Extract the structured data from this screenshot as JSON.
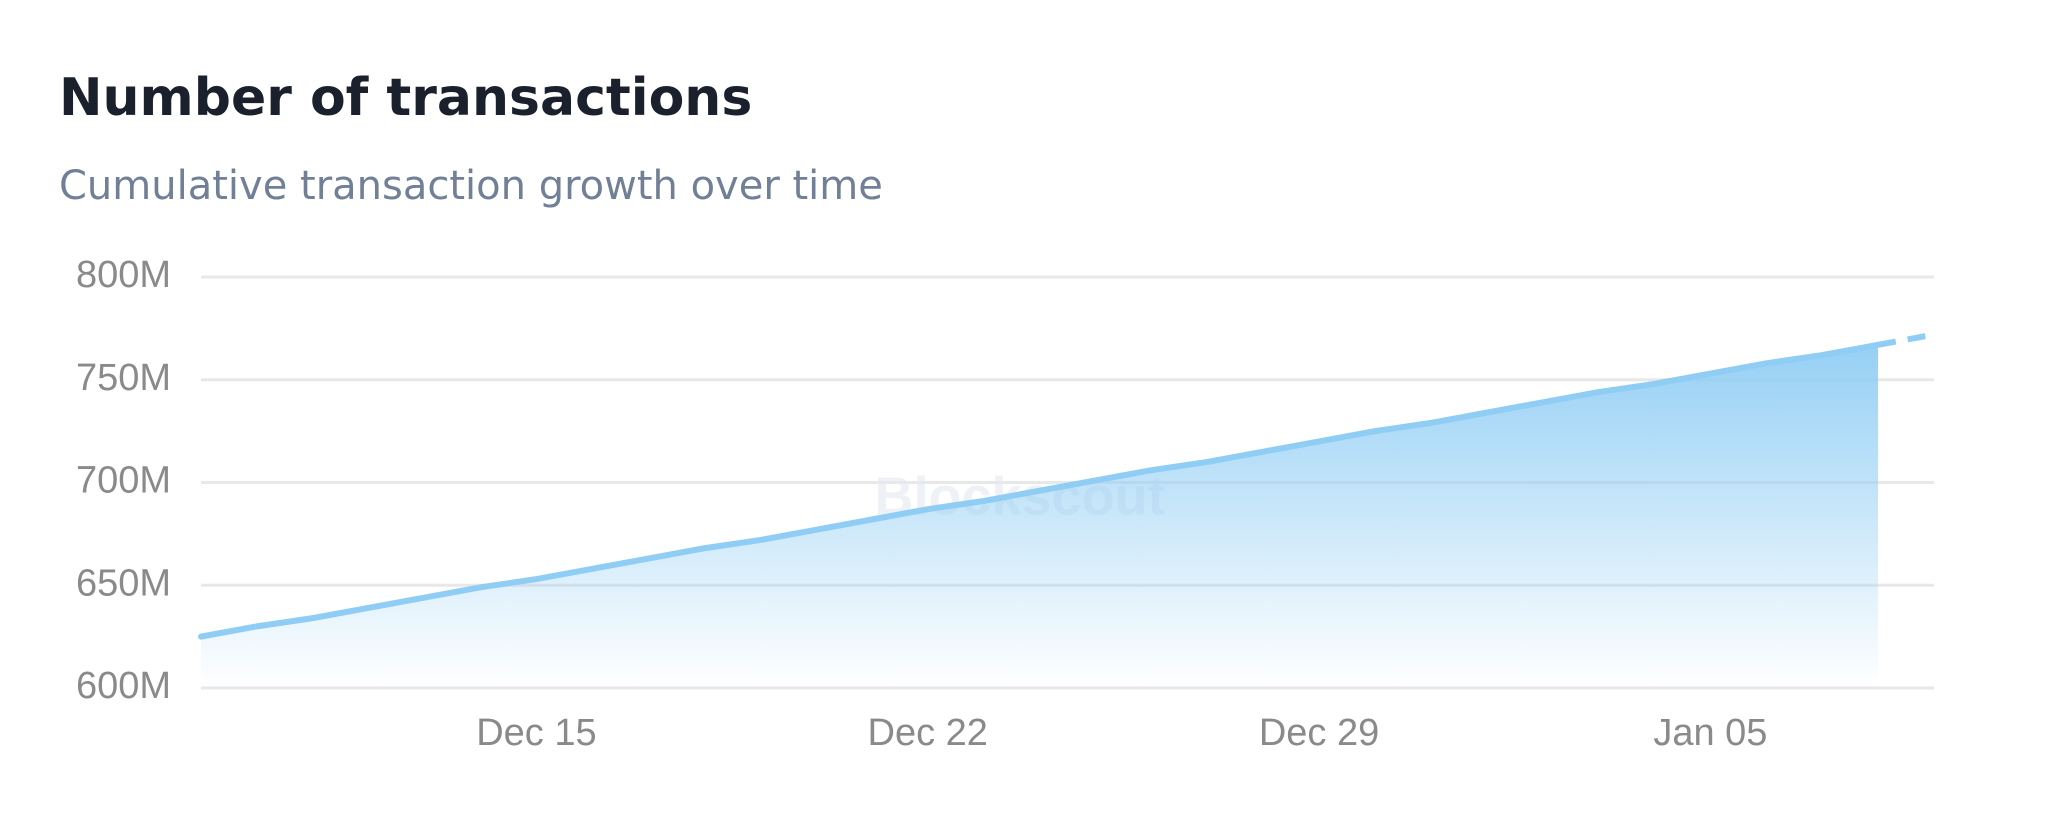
{
  "chart_data": {
    "type": "area",
    "title": "Number of transactions",
    "subtitle": "Cumulative transaction growth over time",
    "watermark": "Blockscout",
    "x": [
      "Dec 09",
      "Dec 10",
      "Dec 11",
      "Dec 12",
      "Dec 13",
      "Dec 14",
      "Dec 15",
      "Dec 16",
      "Dec 17",
      "Dec 18",
      "Dec 19",
      "Dec 20",
      "Dec 21",
      "Dec 22",
      "Dec 23",
      "Dec 24",
      "Dec 25",
      "Dec 26",
      "Dec 27",
      "Dec 28",
      "Dec 29",
      "Dec 30",
      "Dec 31",
      "Jan 01",
      "Jan 02",
      "Jan 03",
      "Jan 04",
      "Jan 05",
      "Jan 06",
      "Jan 07",
      "Jan 08",
      "Jan 09"
    ],
    "values": [
      625000000,
      630000000,
      634000000,
      639000000,
      644000000,
      649000000,
      653000000,
      658000000,
      663000000,
      668000000,
      672000000,
      677000000,
      682000000,
      687000000,
      691000000,
      696000000,
      701000000,
      706000000,
      710000000,
      715000000,
      720000000,
      725000000,
      729000000,
      734000000,
      739000000,
      744000000,
      748000000,
      753000000,
      758000000,
      762000000,
      767000000,
      772000000
    ],
    "color": "#90cdf4",
    "last_segment_dashed": true,
    "ylim": [
      600000000,
      800000000
    ],
    "yticks": [
      {
        "value": 600000000,
        "label": "600M"
      },
      {
        "value": 650000000,
        "label": "650M"
      },
      {
        "value": 700000000,
        "label": "700M"
      },
      {
        "value": 750000000,
        "label": "750M"
      },
      {
        "value": 800000000,
        "label": "800M"
      }
    ],
    "xticks": [
      "Dec 15",
      "Dec 22",
      "Dec 29",
      "Jan 05"
    ],
    "grid": true
  }
}
